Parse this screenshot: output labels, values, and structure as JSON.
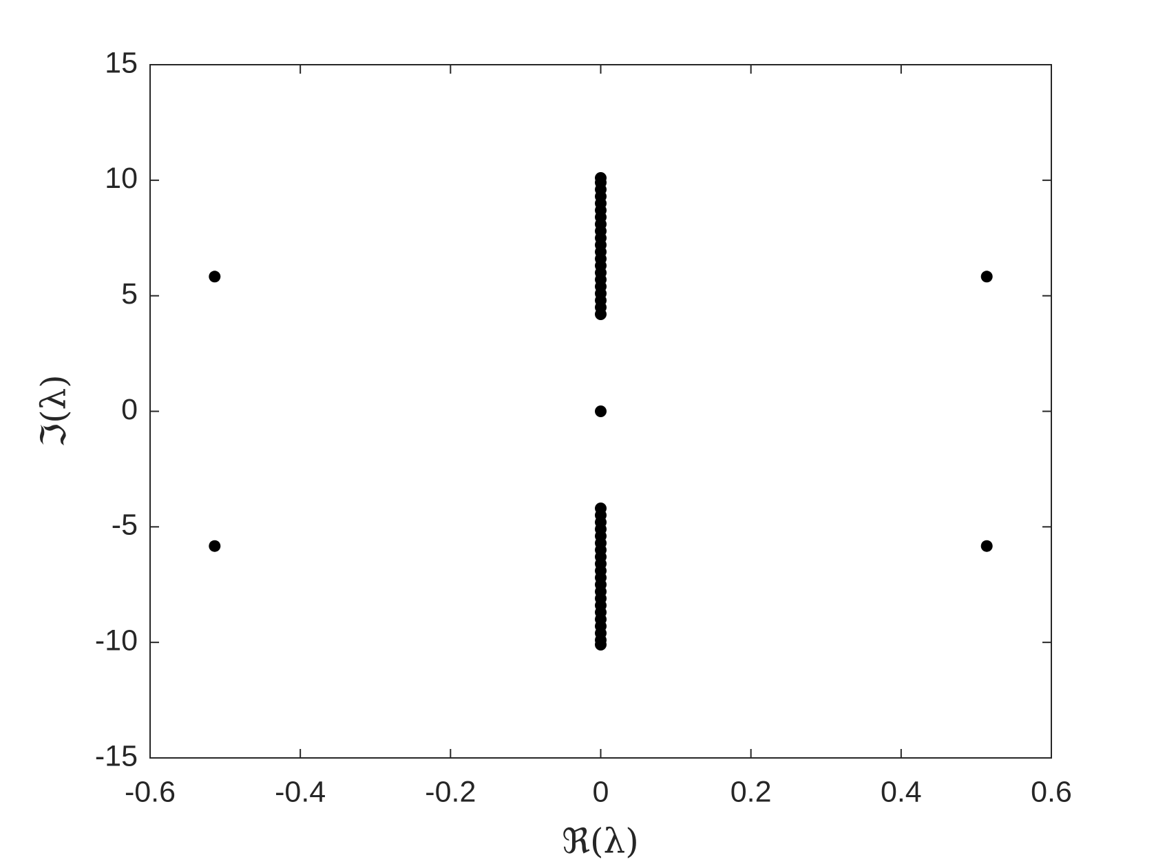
{
  "chart_data": {
    "type": "scatter",
    "x_label": "ℜ(λ)",
    "y_label": "ℑ(λ)",
    "xlim": [
      -0.6,
      0.6
    ],
    "ylim": [
      -15,
      15
    ],
    "xticks": [
      -0.6,
      -0.4,
      -0.2,
      0,
      0.2,
      0.4,
      0.6
    ],
    "yticks": [
      -15,
      -10,
      -5,
      0,
      5,
      10,
      15
    ],
    "grid": false,
    "series": [
      {
        "color": "#000000",
        "x": [
          -0.514,
          0.514,
          -0.514,
          0.514,
          0,
          0,
          0,
          0,
          0,
          0,
          0,
          0,
          0,
          0,
          0,
          0,
          0,
          0,
          0,
          0,
          0,
          0,
          0,
          0,
          0,
          0,
          0,
          0,
          0,
          0,
          0,
          0,
          0,
          0,
          0,
          0,
          0,
          0,
          0,
          0,
          0,
          0,
          0,
          0,
          0,
          0,
          0
        ],
        "y": [
          5.83,
          5.83,
          -5.83,
          -5.83,
          0,
          4.2,
          4.5,
          4.8,
          5.1,
          5.4,
          5.7,
          6.0,
          6.3,
          6.6,
          6.9,
          7.2,
          7.5,
          7.8,
          8.1,
          8.4,
          8.7,
          9.0,
          9.3,
          9.6,
          9.9,
          10.1,
          -4.2,
          -4.5,
          -4.8,
          -5.1,
          -5.4,
          -5.7,
          -6.0,
          -6.3,
          -6.6,
          -6.9,
          -7.2,
          -7.5,
          -7.8,
          -8.1,
          -8.4,
          -8.7,
          -9.0,
          -9.3,
          -9.6,
          -9.9,
          -10.1
        ]
      }
    ]
  }
}
